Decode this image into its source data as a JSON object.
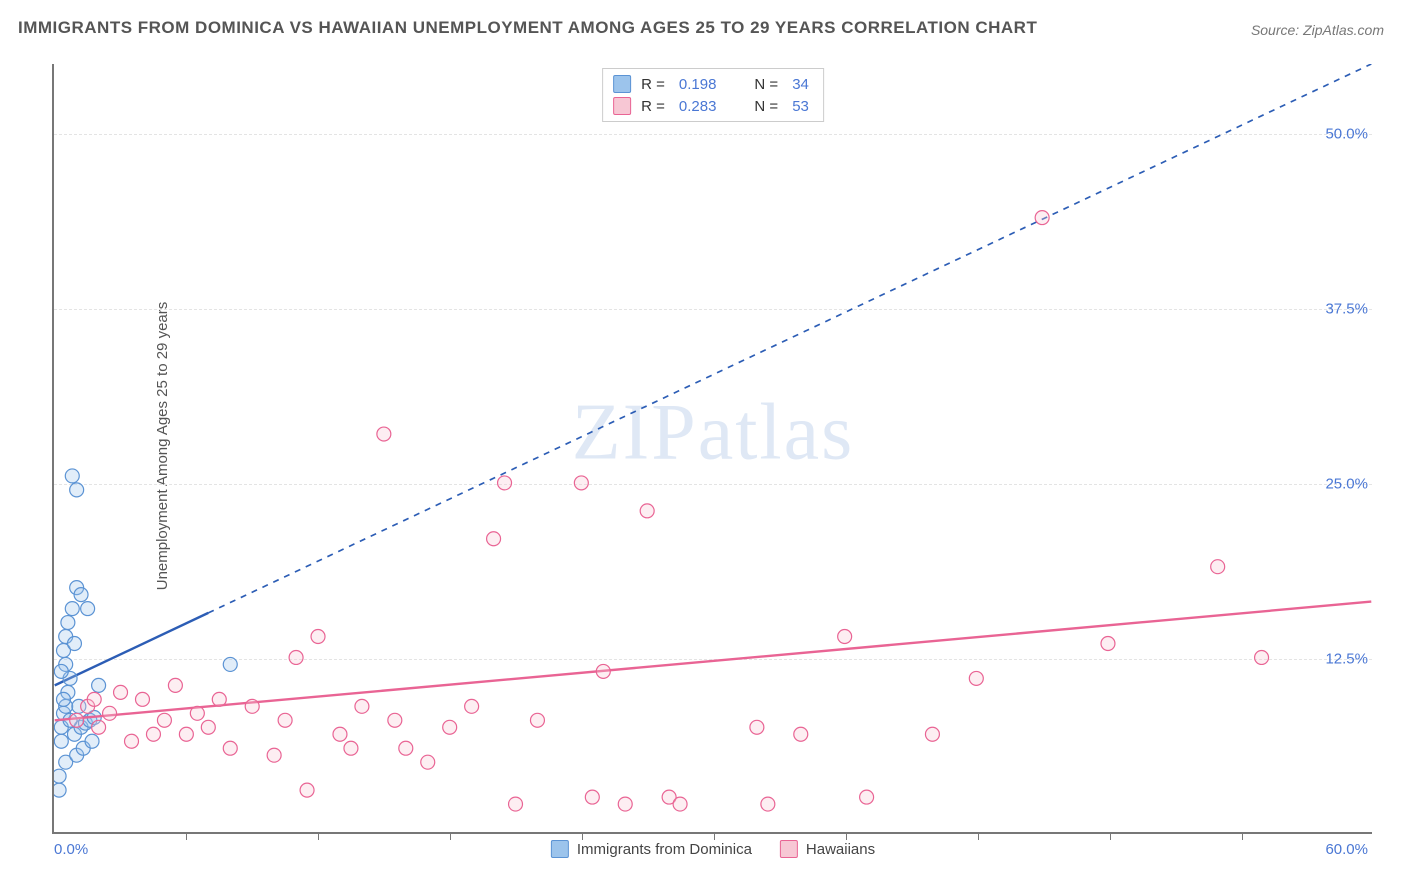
{
  "title": "IMMIGRANTS FROM DOMINICA VS HAWAIIAN UNEMPLOYMENT AMONG AGES 25 TO 29 YEARS CORRELATION CHART",
  "source": "Source: ZipAtlas.com",
  "watermark": "ZIPatlas",
  "ylabel": "Unemployment Among Ages 25 to 29 years",
  "chart": {
    "type": "scatter",
    "xlim": [
      0,
      60
    ],
    "ylim": [
      0,
      55
    ],
    "x_min_label": "0.0%",
    "x_max_label": "60.0%",
    "y_ticks": [
      12.5,
      25.0,
      37.5,
      50.0
    ],
    "y_tick_labels": [
      "12.5%",
      "25.0%",
      "37.5%",
      "50.0%"
    ],
    "x_tick_step": 6,
    "background_color": "#ffffff",
    "grid_color": "#e4e4e4",
    "axis_color": "#777777",
    "marker_radius": 7,
    "series": [
      {
        "name": "Immigrants from Dominica",
        "color_fill": "#9cc4ec",
        "color_stroke": "#5b93d4",
        "r": "0.198",
        "n": "34",
        "trend": {
          "x1": 0,
          "y1": 10.5,
          "x2": 60,
          "y2": 55,
          "solid_until_x": 7,
          "color": "#2c5db5",
          "width": 2.4
        },
        "points": [
          [
            0.3,
            7.5
          ],
          [
            0.4,
            8.5
          ],
          [
            0.5,
            9.0
          ],
          [
            0.6,
            10.0
          ],
          [
            0.7,
            11.0
          ],
          [
            0.5,
            12.0
          ],
          [
            0.4,
            13.0
          ],
          [
            0.6,
            15.0
          ],
          [
            0.8,
            16.0
          ],
          [
            1.0,
            17.5
          ],
          [
            0.5,
            14.0
          ],
          [
            0.3,
            6.5
          ],
          [
            0.9,
            7.0
          ],
          [
            1.2,
            7.5
          ],
          [
            1.4,
            7.8
          ],
          [
            1.6,
            8.0
          ],
          [
            1.8,
            8.2
          ],
          [
            0.8,
            25.5
          ],
          [
            1.0,
            24.5
          ],
          [
            1.2,
            17.0
          ],
          [
            1.5,
            16.0
          ],
          [
            0.2,
            4.0
          ],
          [
            0.5,
            5.0
          ],
          [
            1.0,
            5.5
          ],
          [
            1.3,
            6.0
          ],
          [
            1.7,
            6.5
          ],
          [
            0.2,
            3.0
          ],
          [
            8.0,
            12.0
          ],
          [
            2.0,
            10.5
          ],
          [
            0.4,
            9.5
          ],
          [
            0.7,
            8.0
          ],
          [
            0.3,
            11.5
          ],
          [
            0.9,
            13.5
          ],
          [
            1.1,
            9.0
          ]
        ]
      },
      {
        "name": "Hawaiians",
        "color_fill": "#f7c7d4",
        "color_stroke": "#e96494",
        "r": "0.283",
        "n": "53",
        "trend": {
          "x1": 0,
          "y1": 8.0,
          "x2": 60,
          "y2": 16.5,
          "solid_until_x": 60,
          "color": "#e96494",
          "width": 2.4
        },
        "points": [
          [
            1.5,
            9.0
          ],
          [
            2.5,
            8.5
          ],
          [
            3.0,
            10.0
          ],
          [
            4.0,
            9.5
          ],
          [
            5.0,
            8.0
          ],
          [
            5.5,
            10.5
          ],
          [
            6.0,
            7.0
          ],
          [
            7.0,
            7.5
          ],
          [
            8.0,
            6.0
          ],
          [
            9.0,
            9.0
          ],
          [
            10.0,
            5.5
          ],
          [
            10.5,
            8.0
          ],
          [
            11.0,
            12.5
          ],
          [
            12.0,
            14.0
          ],
          [
            13.0,
            7.0
          ],
          [
            13.5,
            6.0
          ],
          [
            14.0,
            9.0
          ],
          [
            15.0,
            28.5
          ],
          [
            15.5,
            8.0
          ],
          [
            17.0,
            5.0
          ],
          [
            18.0,
            7.5
          ],
          [
            20.0,
            21.0
          ],
          [
            20.5,
            25.0
          ],
          [
            21.0,
            2.0
          ],
          [
            22.0,
            8.0
          ],
          [
            24.0,
            25.0
          ],
          [
            24.5,
            2.5
          ],
          [
            25.0,
            11.5
          ],
          [
            26.0,
            2.0
          ],
          [
            27.0,
            23.0
          ],
          [
            28.0,
            2.5
          ],
          [
            28.5,
            2.0
          ],
          [
            32.0,
            7.5
          ],
          [
            32.5,
            2.0
          ],
          [
            34.0,
            7.0
          ],
          [
            36.0,
            14.0
          ],
          [
            37.0,
            2.5
          ],
          [
            40.0,
            7.0
          ],
          [
            42.0,
            11.0
          ],
          [
            45.0,
            44.0
          ],
          [
            48.0,
            13.5
          ],
          [
            53.0,
            19.0
          ],
          [
            55.0,
            12.5
          ],
          [
            2.0,
            7.5
          ],
          [
            3.5,
            6.5
          ],
          [
            6.5,
            8.5
          ],
          [
            4.5,
            7.0
          ],
          [
            7.5,
            9.5
          ],
          [
            1.0,
            8.0
          ],
          [
            1.8,
            9.5
          ],
          [
            11.5,
            3.0
          ],
          [
            16.0,
            6.0
          ],
          [
            19.0,
            9.0
          ]
        ]
      }
    ]
  },
  "legend_top": {
    "r_label": "R  =",
    "n_label": "N  ="
  },
  "colors": {
    "value_text": "#4a77d4",
    "title_text": "#555555"
  }
}
